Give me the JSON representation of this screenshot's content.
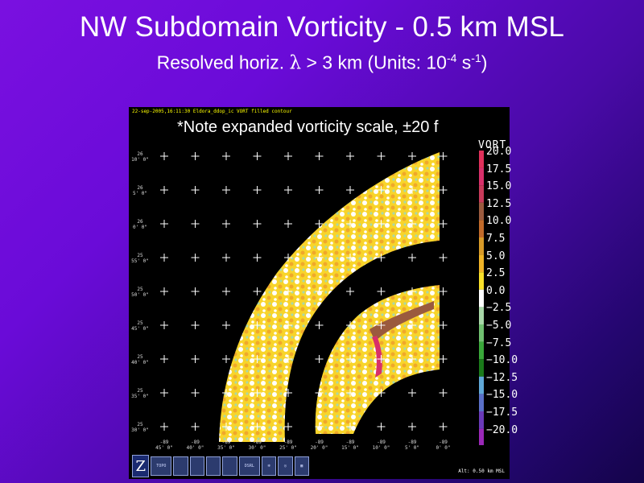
{
  "slide": {
    "title": "NW Subdomain Vorticity - 0.5 km MSL",
    "subtitle_prefix": "Resolved horiz. ",
    "subtitle_lambda": "λ",
    "subtitle_mid": " > 3 km (Units:  10",
    "subtitle_exp1": "-4",
    "subtitle_unit": " s",
    "subtitle_exp2": "-1",
    "subtitle_suffix": ")"
  },
  "viewer": {
    "header_text": "22-sep-2005,16:11:30  Eldora_ddop_ic VORT filled contour",
    "note": "*Note expanded vorticity scale, ±20 f",
    "altitude": "Alt: 0.50 km MSL",
    "legend_title": "VORT",
    "legend_levels": [
      {
        "label": "20.0",
        "color": "#e0305a"
      },
      {
        "label": "17.5",
        "color": "#d8306a"
      },
      {
        "label": "15.0",
        "color": "#c83a5a"
      },
      {
        "label": "12.5",
        "color": "#9a5a3e"
      },
      {
        "label": "10.0",
        "color": "#c06a2a"
      },
      {
        "label": "7.5",
        "color": "#d89a28"
      },
      {
        "label": "5.0",
        "color": "#f0b428"
      },
      {
        "label": "2.5",
        "color": "#f8e02a"
      },
      {
        "label": "0.0",
        "color": "#ffffff"
      },
      {
        "label": "−2.5",
        "color": "#a8d8a8"
      },
      {
        "label": "−5.0",
        "color": "#70c070"
      },
      {
        "label": "−7.5",
        "color": "#3aa83a"
      },
      {
        "label": "−10.0",
        "color": "#1a7a1a"
      },
      {
        "label": "−12.5",
        "color": "#60a8d8"
      },
      {
        "label": "−15.0",
        "color": "#5a70c8"
      },
      {
        "label": "−17.5",
        "color": "#6a3ab8"
      },
      {
        "label": "−20.0",
        "color": "#9a28b8"
      }
    ],
    "lat_labels": [
      [
        "26",
        "10' 0\""
      ],
      [
        "26",
        "5' 0\""
      ],
      [
        "26",
        "0' 0\""
      ],
      [
        "25",
        "55' 0\""
      ],
      [
        "25",
        "50' 0\""
      ],
      [
        "25",
        "45' 0\""
      ],
      [
        "25",
        "40' 0\""
      ],
      [
        "25",
        "35' 0\""
      ],
      [
        "25",
        "30' 0\""
      ]
    ],
    "lon_labels": [
      [
        "-89",
        "45' 0\""
      ],
      [
        "-89",
        "40' 0\""
      ],
      [
        "-89",
        "35' 0\""
      ],
      [
        "-89",
        "30' 0\""
      ],
      [
        "-89",
        "25' 0\""
      ],
      [
        "-89",
        "20' 0\""
      ],
      [
        "-89",
        "15' 0\""
      ],
      [
        "-89",
        "10' 0\""
      ],
      [
        "-89",
        "5' 0\""
      ],
      [
        "-89",
        "0' 0\""
      ]
    ],
    "toolbar": [
      {
        "icon": "zebra-logo-icon",
        "text": "Z"
      },
      {
        "icon": "topo-icon",
        "text": "TOPO"
      },
      {
        "icon": "wind-icon",
        "text": ""
      },
      {
        "icon": "wind-icon",
        "text": ""
      },
      {
        "icon": "aircraft-icon",
        "text": ""
      },
      {
        "icon": "grid-icon",
        "text": ""
      },
      {
        "icon": "dsrl-icon",
        "text": "DSRL"
      },
      {
        "icon": "snowflake-icon",
        "text": "❄"
      },
      {
        "icon": "target-icon",
        "text": "◎"
      },
      {
        "icon": "table-icon",
        "text": "▦"
      }
    ]
  }
}
